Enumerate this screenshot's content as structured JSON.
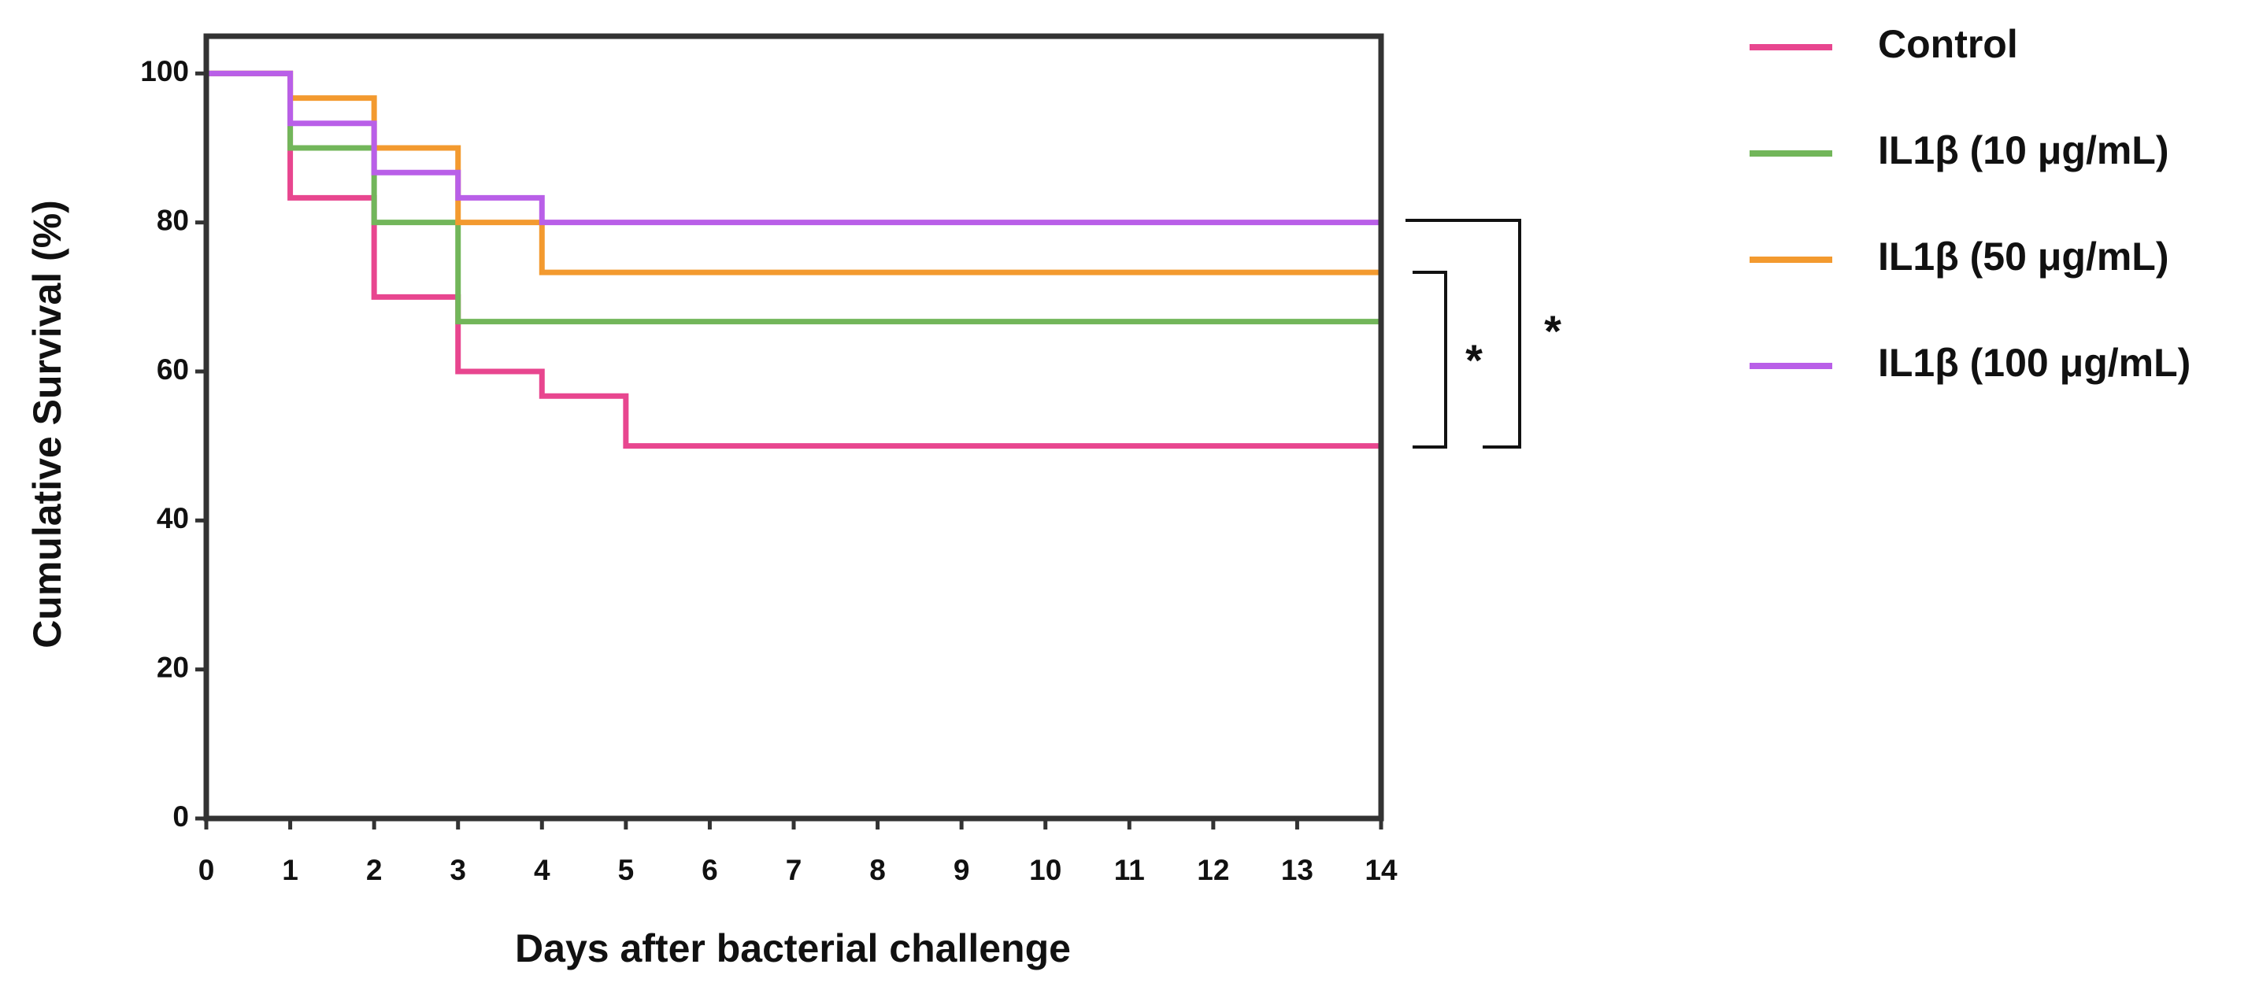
{
  "chart_data": {
    "type": "step",
    "x_label": "Days after bacterial challenge",
    "y_label": "Cumulative Survival (%)",
    "x": [
      0,
      1,
      2,
      3,
      4,
      5,
      14
    ],
    "series": [
      {
        "name": "Control",
        "color": "#e8468f",
        "values": [
          100,
          83.3,
          70,
          60,
          56.7,
          50,
          50
        ]
      },
      {
        "name": "IL1β (10 μg/mL)",
        "color": "#72b65a",
        "values": [
          100,
          90,
          80,
          66.7,
          66.7,
          66.7,
          66.7
        ]
      },
      {
        "name": "IL1β (50 μg/mL)",
        "color": "#f39a2f",
        "values": [
          100,
          96.7,
          90,
          80,
          73.3,
          73.3,
          73.3
        ]
      },
      {
        "name": "IL1β (100 μg/mL)",
        "color": "#b95fe8",
        "values": [
          100,
          93.3,
          86.7,
          83.3,
          80,
          80,
          80
        ]
      }
    ],
    "xlim": [
      0,
      14
    ],
    "xticks": [
      0,
      1,
      2,
      3,
      4,
      5,
      6,
      7,
      8,
      9,
      10,
      11,
      12,
      13,
      14
    ],
    "ylim": [
      0,
      105
    ],
    "yticks": [
      0,
      20,
      40,
      60,
      80,
      100
    ],
    "legend": "right",
    "annotations": [
      "*",
      "*"
    ]
  }
}
